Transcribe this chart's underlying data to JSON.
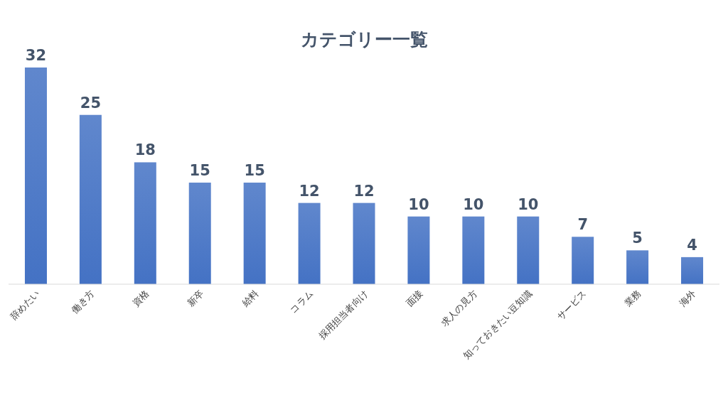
{
  "chart_data": {
    "type": "bar",
    "title": "カテゴリー一覧",
    "categories": [
      "辞めたい",
      "働き方",
      "資格",
      "新卒",
      "給料",
      "コラム",
      "採用担当者向け",
      "面接",
      "求人の見方",
      "知っておきたい豆知識",
      "サービス",
      "業務",
      "海外"
    ],
    "values": [
      32,
      25,
      18,
      15,
      15,
      12,
      12,
      10,
      10,
      10,
      7,
      5,
      4
    ],
    "color": "#4472c4",
    "data_labels": true
  }
}
